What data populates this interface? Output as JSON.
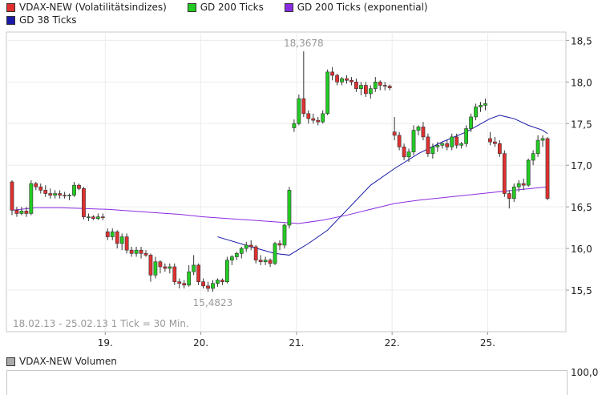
{
  "legend_row1": [
    {
      "label": "VDAX-NEW (Volatilitätsindizes)",
      "color": "#e03030"
    },
    {
      "label": "GD 200 Ticks",
      "color": "#22cc22"
    },
    {
      "label": "GD 200 Ticks (exponential)",
      "color": "#8a2be2"
    }
  ],
  "legend_row2": [
    {
      "label": "GD 38 Ticks",
      "color": "#1a1aa8"
    }
  ],
  "chart_data": {
    "type": "candlestick",
    "title": "",
    "ylim": [
      15.0,
      18.6
    ],
    "y_ticks": [
      "18,5",
      "18,0",
      "17,5",
      "17,0",
      "16,5",
      "16,0",
      "15,5"
    ],
    "x_ticks": [
      "19.",
      "20.",
      "21.",
      "22.",
      "25."
    ],
    "x_tick_index": [
      20,
      40,
      60,
      80,
      100
    ],
    "period_label": "18.02.13 - 25.02.13   1 Tick = 30 Min.",
    "annotations": [
      {
        "text": "18,3678",
        "index": 61,
        "value": 18.3678,
        "pos": "above"
      },
      {
        "text": "15,4823",
        "index": 42,
        "value": 15.4823,
        "pos": "below"
      }
    ],
    "colors": {
      "up": "#22cc22",
      "down": "#e03030",
      "gd38": "#1a1aa8",
      "gd200exp": "#8a2be2"
    },
    "candles": [
      [
        16.8,
        16.82,
        16.4,
        16.46
      ],
      [
        16.46,
        16.5,
        16.38,
        16.42
      ],
      [
        16.42,
        16.5,
        16.4,
        16.45
      ],
      [
        16.45,
        16.5,
        16.38,
        16.42
      ],
      [
        16.42,
        16.82,
        16.4,
        16.78
      ],
      [
        16.78,
        16.8,
        16.7,
        16.74
      ],
      [
        16.74,
        16.78,
        16.66,
        16.7
      ],
      [
        16.7,
        16.76,
        16.62,
        16.66
      ],
      [
        16.66,
        16.72,
        16.6,
        16.64
      ],
      [
        16.64,
        16.7,
        16.6,
        16.66
      ],
      [
        16.66,
        16.7,
        16.6,
        16.64
      ],
      [
        16.64,
        16.68,
        16.6,
        16.63
      ],
      [
        16.63,
        16.66,
        16.58,
        16.64
      ],
      [
        16.64,
        16.8,
        16.62,
        16.76
      ],
      [
        16.76,
        16.78,
        16.7,
        16.72
      ],
      [
        16.72,
        16.74,
        16.35,
        16.38
      ],
      [
        16.38,
        16.42,
        16.33,
        16.38
      ],
      [
        16.38,
        16.4,
        16.34,
        16.36
      ],
      [
        16.36,
        16.42,
        16.34,
        16.38
      ],
      [
        16.38,
        16.42,
        16.34,
        16.37
      ],
      [
        16.2,
        16.24,
        16.1,
        16.14
      ],
      [
        16.14,
        16.24,
        16.1,
        16.2
      ],
      [
        16.2,
        16.22,
        16.0,
        16.06
      ],
      [
        16.06,
        16.18,
        15.98,
        16.14
      ],
      [
        16.14,
        16.18,
        15.94,
        15.98
      ],
      [
        15.98,
        16.02,
        15.9,
        15.94
      ],
      [
        15.94,
        16.02,
        15.9,
        15.98
      ],
      [
        15.98,
        16.02,
        15.88,
        15.94
      ],
      [
        15.94,
        15.98,
        15.9,
        15.92
      ],
      [
        15.92,
        15.94,
        15.6,
        15.68
      ],
      [
        15.68,
        15.9,
        15.64,
        15.84
      ],
      [
        15.84,
        15.86,
        15.7,
        15.78
      ],
      [
        15.78,
        15.82,
        15.72,
        15.76
      ],
      [
        15.76,
        15.82,
        15.7,
        15.78
      ],
      [
        15.78,
        15.82,
        15.56,
        15.6
      ],
      [
        15.6,
        15.64,
        15.52,
        15.58
      ],
      [
        15.58,
        15.62,
        15.52,
        15.56
      ],
      [
        15.56,
        15.8,
        15.54,
        15.72
      ],
      [
        15.72,
        15.92,
        15.68,
        15.8
      ],
      [
        15.8,
        15.82,
        15.56,
        15.6
      ],
      [
        15.6,
        15.64,
        15.52,
        15.55
      ],
      [
        15.55,
        15.6,
        15.48,
        15.52
      ],
      [
        15.52,
        15.62,
        15.48,
        15.58
      ],
      [
        15.58,
        15.64,
        15.54,
        15.62
      ],
      [
        15.62,
        15.64,
        15.56,
        15.6
      ],
      [
        15.6,
        15.9,
        15.58,
        15.86
      ],
      [
        15.86,
        15.92,
        15.8,
        15.9
      ],
      [
        15.9,
        15.96,
        15.86,
        15.94
      ],
      [
        15.94,
        16.02,
        15.88,
        16.0
      ],
      [
        16.0,
        16.08,
        15.96,
        16.04
      ],
      [
        16.04,
        16.1,
        15.98,
        16.02
      ],
      [
        16.02,
        16.04,
        15.82,
        15.86
      ],
      [
        15.86,
        15.92,
        15.8,
        15.84
      ],
      [
        15.84,
        15.9,
        15.8,
        15.86
      ],
      [
        15.86,
        15.88,
        15.78,
        15.82
      ],
      [
        15.82,
        16.08,
        15.8,
        16.06
      ],
      [
        16.06,
        16.1,
        15.98,
        16.04
      ],
      [
        16.04,
        16.3,
        16.0,
        16.28
      ],
      [
        16.28,
        16.74,
        16.24,
        16.7
      ],
      [
        17.45,
        17.55,
        17.4,
        17.5
      ],
      [
        17.5,
        17.85,
        17.48,
        17.8
      ],
      [
        17.8,
        18.3678,
        17.58,
        17.62
      ],
      [
        17.62,
        17.66,
        17.5,
        17.56
      ],
      [
        17.56,
        17.62,
        17.5,
        17.54
      ],
      [
        17.54,
        17.58,
        17.48,
        17.52
      ],
      [
        17.52,
        17.66,
        17.5,
        17.62
      ],
      [
        17.62,
        18.15,
        17.6,
        18.12
      ],
      [
        18.12,
        18.18,
        18.02,
        18.08
      ],
      [
        18.08,
        18.1,
        17.96,
        18.0
      ],
      [
        18.0,
        18.06,
        17.96,
        18.04
      ],
      [
        18.04,
        18.08,
        17.98,
        18.02
      ],
      [
        18.02,
        18.06,
        17.96,
        18.0
      ],
      [
        18.0,
        18.04,
        17.88,
        17.92
      ],
      [
        17.92,
        18.0,
        17.84,
        17.96
      ],
      [
        17.96,
        18.0,
        17.82,
        17.86
      ],
      [
        17.86,
        17.96,
        17.8,
        17.92
      ],
      [
        17.92,
        18.06,
        17.88,
        18.0
      ],
      [
        18.0,
        18.02,
        17.9,
        17.96
      ],
      [
        17.96,
        18.0,
        17.9,
        17.95
      ],
      [
        17.95,
        17.97,
        17.9,
        17.93
      ],
      [
        17.4,
        17.58,
        17.3,
        17.36
      ],
      [
        17.36,
        17.4,
        17.18,
        17.22
      ],
      [
        17.22,
        17.26,
        17.06,
        17.1
      ],
      [
        17.1,
        17.2,
        17.04,
        17.16
      ],
      [
        17.16,
        17.48,
        17.12,
        17.42
      ],
      [
        17.42,
        17.48,
        17.36,
        17.46
      ],
      [
        17.46,
        17.52,
        17.3,
        17.34
      ],
      [
        17.34,
        17.38,
        17.1,
        17.14
      ],
      [
        17.14,
        17.26,
        17.08,
        17.22
      ],
      [
        17.22,
        17.28,
        17.16,
        17.24
      ],
      [
        17.24,
        17.28,
        17.2,
        17.26
      ],
      [
        17.26,
        17.3,
        17.18,
        17.22
      ],
      [
        17.22,
        17.38,
        17.18,
        17.34
      ],
      [
        17.34,
        17.38,
        17.2,
        17.24
      ],
      [
        17.24,
        17.28,
        17.2,
        17.26
      ],
      [
        17.26,
        17.48,
        17.22,
        17.44
      ],
      [
        17.44,
        17.62,
        17.4,
        17.58
      ],
      [
        17.58,
        17.74,
        17.54,
        17.7
      ],
      [
        17.7,
        17.76,
        17.64,
        17.72
      ],
      [
        17.72,
        17.8,
        17.66,
        17.74
      ],
      [
        17.32,
        17.4,
        17.24,
        17.28
      ],
      [
        17.28,
        17.34,
        17.22,
        17.26
      ],
      [
        17.26,
        17.3,
        17.1,
        17.14
      ],
      [
        17.14,
        17.18,
        16.62,
        16.66
      ],
      [
        16.66,
        16.7,
        16.48,
        16.6
      ],
      [
        16.6,
        16.78,
        16.56,
        16.74
      ],
      [
        16.74,
        16.82,
        16.68,
        16.78
      ],
      [
        16.78,
        16.84,
        16.7,
        16.76
      ],
      [
        16.76,
        17.08,
        16.74,
        17.06
      ],
      [
        17.06,
        17.18,
        17.0,
        17.14
      ],
      [
        17.14,
        17.36,
        17.1,
        17.3
      ],
      [
        17.3,
        17.36,
        17.22,
        17.32
      ],
      [
        17.32,
        17.34,
        16.58,
        16.6
      ]
    ],
    "gd38_ticks": {
      "index": [
        43,
        50,
        55,
        58,
        62,
        66,
        70,
        75,
        80,
        85,
        90,
        95,
        100,
        102,
        105,
        108,
        111,
        112
      ],
      "values": [
        16.14,
        16.02,
        15.94,
        15.92,
        16.06,
        16.22,
        16.46,
        16.76,
        16.96,
        17.14,
        17.28,
        17.4,
        17.56,
        17.6,
        17.56,
        17.48,
        17.42,
        17.38
      ]
    },
    "gd200_exp": {
      "index": [
        0,
        5,
        10,
        15,
        20,
        25,
        30,
        35,
        40,
        45,
        50,
        55,
        60,
        65,
        70,
        75,
        80,
        85,
        90,
        95,
        100,
        105,
        112
      ],
      "values": [
        16.46,
        16.49,
        16.49,
        16.48,
        16.47,
        16.45,
        16.43,
        16.41,
        16.38,
        16.36,
        16.34,
        16.32,
        16.3,
        16.34,
        16.4,
        16.47,
        16.54,
        16.58,
        16.61,
        16.64,
        16.67,
        16.7,
        16.74
      ]
    }
  },
  "volume_panel": {
    "legend": {
      "label": "VDAX-NEW Volumen",
      "color": "#aaaaaa"
    },
    "y_label": "100,0"
  }
}
